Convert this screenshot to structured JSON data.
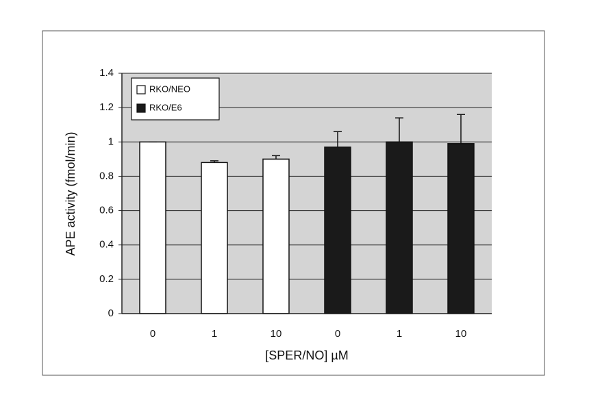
{
  "chart_data": {
    "type": "bar",
    "categories": [
      "0",
      "1",
      "10",
      "0",
      "1",
      "10"
    ],
    "series": [
      {
        "name": "RKO/NEO",
        "color": "#ffffff",
        "values": [
          1.0,
          0.88,
          0.9,
          null,
          null,
          null
        ],
        "errors": [
          0.0,
          0.01,
          0.02,
          null,
          null,
          null
        ]
      },
      {
        "name": "RKO/E6",
        "color": "#1a1a1a",
        "values": [
          null,
          null,
          null,
          0.97,
          1.0,
          0.99
        ],
        "errors": [
          null,
          null,
          null,
          0.09,
          0.14,
          0.17
        ]
      }
    ],
    "ylim": [
      0,
      1.4
    ],
    "yticks": [
      0,
      0.2,
      0.4,
      0.6,
      0.8,
      1,
      1.2,
      1.4
    ],
    "grid": true,
    "legend": "top-left",
    "xlabel": "[SPER/NO]  µM",
    "ylabel": "APE activity  (fmol/min)"
  }
}
